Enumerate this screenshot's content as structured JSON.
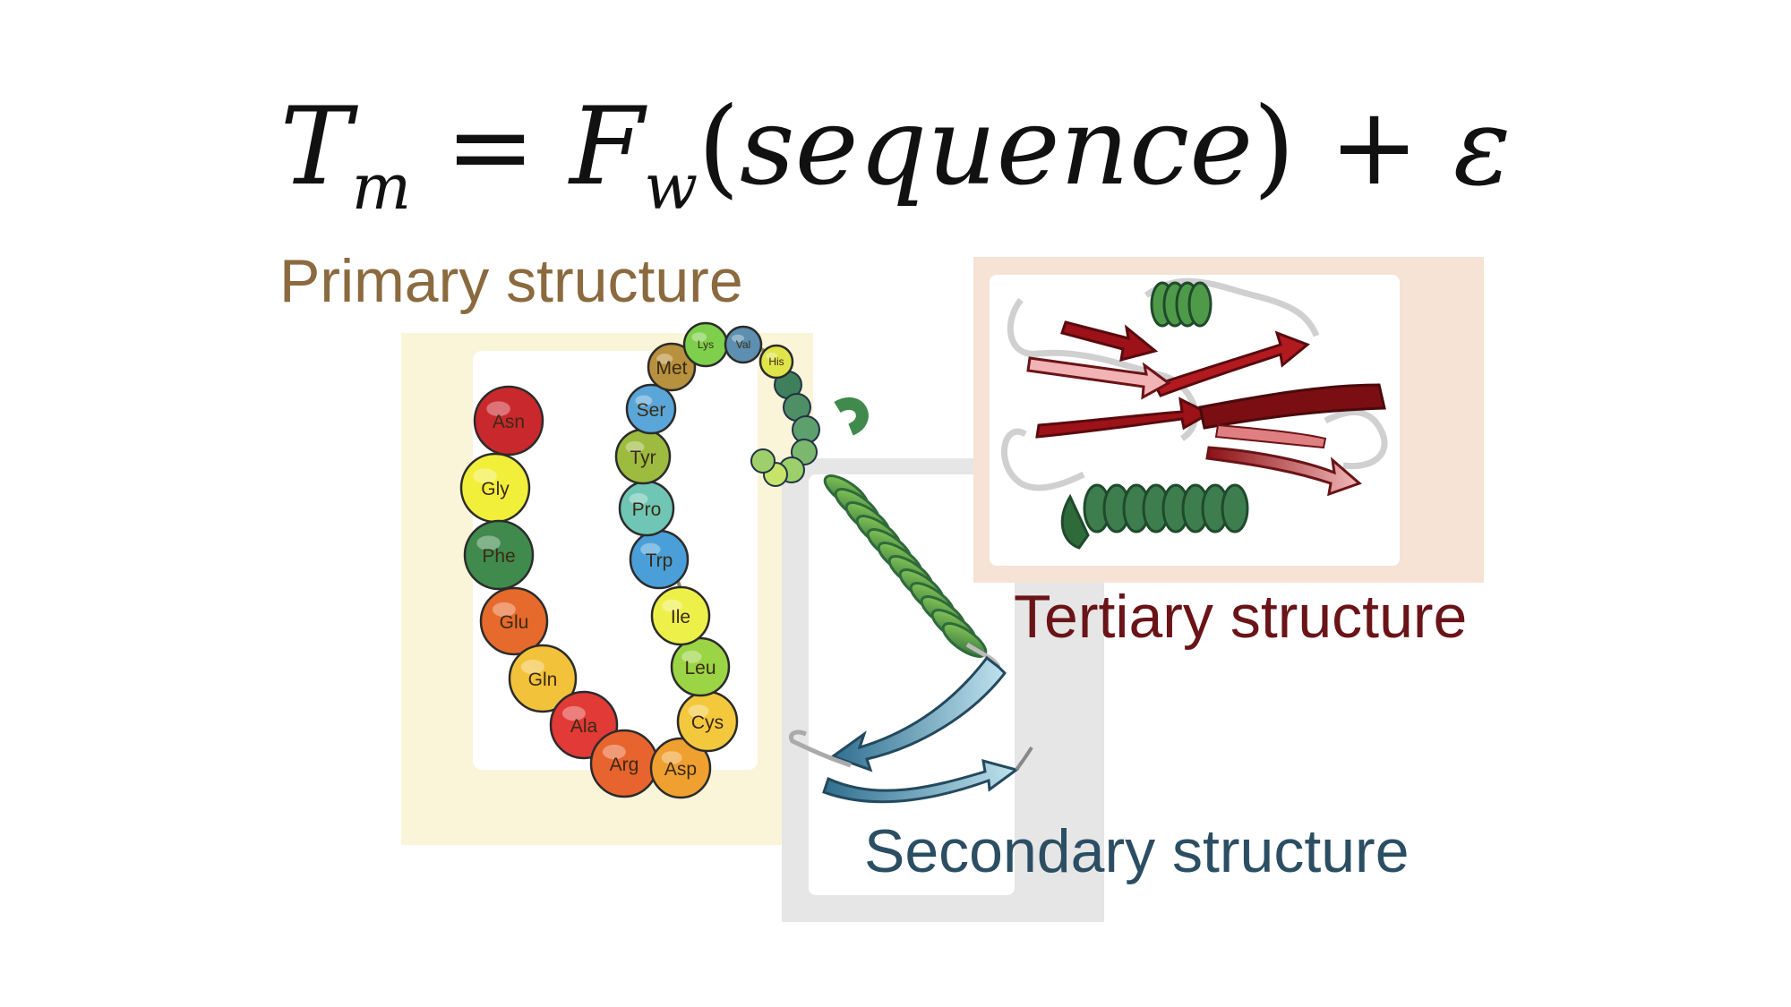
{
  "equation": {
    "lhs_symbol": "T",
    "lhs_subscript": "m",
    "equals": "=",
    "function_symbol": "F",
    "function_subscript": "w",
    "argument": "sequence",
    "plus": "+",
    "error_term": "ε"
  },
  "labels": {
    "primary": "Primary structure",
    "secondary": "Secondary structure",
    "tertiary": "Tertiary structure"
  },
  "colors": {
    "primary_label": "#8a6a3e",
    "secondary_label": "#2b4e63",
    "tertiary_label": "#6a1418",
    "primary_panel": "#faf4d8",
    "secondary_panel": "#e6e6e6",
    "tertiary_panel": "#f6e3d6"
  },
  "residues": [
    {
      "label": "Asn",
      "color": "#c9282d"
    },
    {
      "label": "Gly",
      "color": "#f2ef3a"
    },
    {
      "label": "Phe",
      "color": "#3f8a4c"
    },
    {
      "label": "Glu",
      "color": "#e66a2c"
    },
    {
      "label": "Gln",
      "color": "#f2c23a"
    },
    {
      "label": "Ala",
      "color": "#e23a36"
    },
    {
      "label": "Arg",
      "color": "#e8642e"
    },
    {
      "label": "Asp",
      "color": "#f0a030"
    },
    {
      "label": "Cys",
      "color": "#f3c83d"
    },
    {
      "label": "Leu",
      "color": "#9bd444"
    },
    {
      "label": "Ile",
      "color": "#eef04a"
    },
    {
      "label": "Trp",
      "color": "#4a9fd8"
    },
    {
      "label": "Pro",
      "color": "#6fc6b4"
    },
    {
      "label": "Tyr",
      "color": "#9dbb3f"
    },
    {
      "label": "Ser",
      "color": "#5aa6d8"
    },
    {
      "label": "Met",
      "color": "#b8913e"
    },
    {
      "label": "Lys",
      "color": "#7ed04c"
    },
    {
      "label": "Val",
      "color": "#5c8fb0"
    },
    {
      "label": "His",
      "color": "#dfe44a"
    }
  ]
}
